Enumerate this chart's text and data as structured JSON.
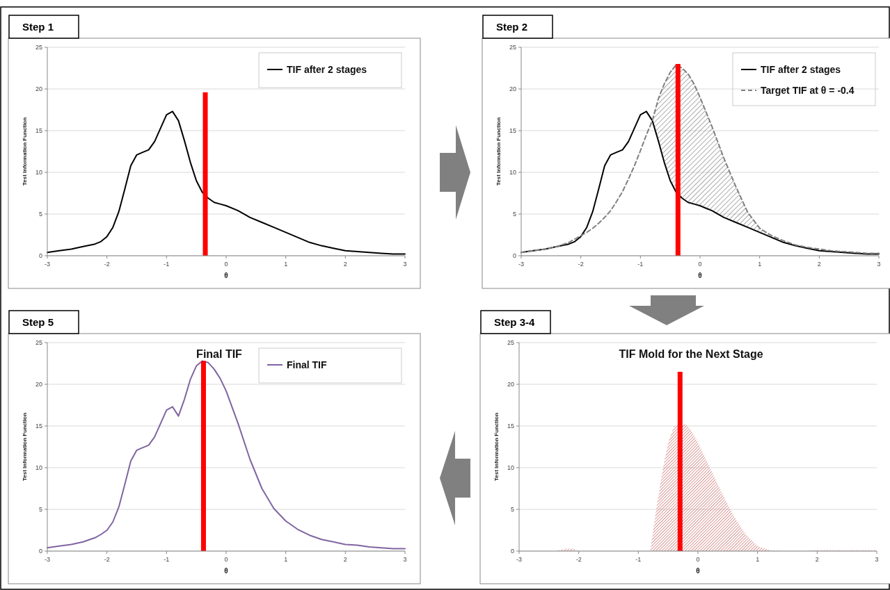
{
  "chart_data": [
    {
      "type": "line",
      "annotations": [
        "Step 1"
      ],
      "xlabel": "θ",
      "ylabel": "Test Information Function",
      "xlim": [
        -3,
        3
      ],
      "xticks": [
        -3,
        -2,
        -1,
        0,
        1,
        2,
        3
      ],
      "ylim": [
        0,
        25
      ],
      "yticks": [
        0,
        5,
        10,
        15,
        20,
        25
      ],
      "grid": "y",
      "legend": "top right",
      "x": [
        -3,
        -2.8,
        -2.6,
        -2.4,
        -2.2,
        -2.1,
        -2,
        -1.9,
        -1.8,
        -1.7,
        -1.6,
        -1.5,
        -1.4,
        -1.3,
        -1.2,
        -1.1,
        -1,
        -0.9,
        -0.8,
        -0.7,
        -0.6,
        -0.5,
        -0.4,
        -0.3,
        -0.2,
        -0.1,
        0,
        0.2,
        0.4,
        0.6,
        0.8,
        1,
        1.2,
        1.4,
        1.6,
        1.8,
        2,
        2.2,
        2.4,
        2.6,
        2.8,
        3
      ],
      "series": [
        {
          "name": "TIF after 2 stages",
          "color": "#000000",
          "values": [
            0.4,
            0.6,
            0.8,
            1.1,
            1.4,
            1.7,
            2.3,
            3.4,
            5.3,
            8.0,
            10.8,
            12.1,
            12.4,
            12.7,
            13.7,
            15.3,
            16.9,
            17.3,
            16.2,
            13.8,
            11.2,
            9.0,
            7.6,
            6.9,
            6.4,
            6.2,
            6.0,
            5.4,
            4.6,
            4.0,
            3.4,
            2.8,
            2.2,
            1.6,
            1.2,
            0.9,
            0.6,
            0.5,
            0.4,
            0.3,
            0.2,
            0.2
          ]
        },
        {
          "type": "bar",
          "color": "#ff0000",
          "x": [
            -0.35
          ],
          "values": [
            19.6
          ]
        }
      ]
    },
    {
      "type": "line",
      "annotations": [
        "Step 2"
      ],
      "xlabel": "θ",
      "ylabel": "Test Information Function",
      "xlim": [
        -3,
        3
      ],
      "xticks": [
        -3,
        -2,
        -1,
        0,
        1,
        2,
        3
      ],
      "ylim": [
        0,
        25
      ],
      "yticks": [
        0,
        5,
        10,
        15,
        20,
        25
      ],
      "grid": "y",
      "legend": "top right",
      "x": [
        -3,
        -2.8,
        -2.6,
        -2.4,
        -2.2,
        -2.1,
        -2,
        -1.9,
        -1.8,
        -1.7,
        -1.6,
        -1.5,
        -1.4,
        -1.3,
        -1.2,
        -1.1,
        -1,
        -0.9,
        -0.8,
        -0.7,
        -0.6,
        -0.5,
        -0.4,
        -0.3,
        -0.2,
        -0.1,
        0,
        0.2,
        0.4,
        0.6,
        0.8,
        1,
        1.2,
        1.4,
        1.6,
        1.8,
        2,
        2.2,
        2.4,
        2.6,
        2.8,
        3
      ],
      "series": [
        {
          "name": "TIF after 2 stages",
          "color": "#000000",
          "values": [
            0.4,
            0.6,
            0.8,
            1.1,
            1.4,
            1.7,
            2.3,
            3.4,
            5.3,
            8.0,
            10.8,
            12.1,
            12.4,
            12.7,
            13.7,
            15.3,
            16.9,
            17.3,
            16.2,
            13.8,
            11.2,
            9.0,
            7.6,
            6.9,
            6.4,
            6.2,
            6.0,
            5.4,
            4.6,
            4.0,
            3.4,
            2.8,
            2.2,
            1.6,
            1.2,
            0.9,
            0.6,
            0.5,
            0.4,
            0.3,
            0.2,
            0.2
          ]
        },
        {
          "name": "Target TIF at θ = -0.4",
          "color": "#808080",
          "line_style": "dashed",
          "values": [
            0.4,
            0.6,
            0.8,
            1.1,
            1.6,
            2.0,
            2.4,
            2.8,
            3.3,
            3.9,
            4.6,
            5.4,
            6.5,
            7.7,
            9.2,
            10.8,
            12.6,
            14.5,
            16.2,
            18.8,
            20.6,
            22.0,
            22.9,
            22.5,
            21.8,
            20.6,
            19.0,
            15.5,
            11.7,
            8.3,
            5.2,
            3.3,
            2.4,
            1.8,
            1.3,
            1.0,
            0.8,
            0.6,
            0.5,
            0.4,
            0.3,
            0.3
          ],
          "lower": [
            null,
            null,
            null,
            null,
            null,
            null,
            null,
            null,
            null,
            null,
            null,
            null,
            null,
            null,
            null,
            null,
            null,
            null,
            16.2,
            13.8,
            11.2,
            9.0,
            7.6,
            6.9,
            6.4,
            6.2,
            6.0,
            5.4,
            4.6,
            4.0,
            3.4,
            2.8,
            2.2,
            null,
            null,
            null,
            null,
            null,
            null,
            null,
            null,
            null
          ],
          "upper": [
            null,
            null,
            null,
            null,
            null,
            null,
            null,
            null,
            null,
            null,
            null,
            null,
            null,
            null,
            null,
            null,
            null,
            null,
            16.2,
            18.8,
            20.6,
            22.0,
            22.9,
            22.5,
            21.8,
            20.6,
            19.0,
            15.5,
            11.7,
            8.3,
            5.2,
            3.3,
            2.4,
            null,
            null,
            null,
            null,
            null,
            null,
            null,
            null,
            null
          ]
        },
        {
          "type": "bar",
          "color": "#ff0000",
          "x": [
            -0.37
          ],
          "values": [
            23
          ]
        }
      ]
    },
    {
      "type": "line",
      "annotations": [
        "Step 5"
      ],
      "title": "Final TIF",
      "xlabel": "θ",
      "ylabel": "Test Information Function",
      "xlim": [
        -3,
        3
      ],
      "xticks": [
        -3,
        -2,
        -1,
        0,
        1,
        2,
        3
      ],
      "ylim": [
        0,
        25
      ],
      "yticks": [
        0,
        5,
        10,
        15,
        20,
        25
      ],
      "grid": "y",
      "legend": "top right",
      "x": [
        -3,
        -2.8,
        -2.6,
        -2.4,
        -2.2,
        -2.1,
        -2,
        -1.9,
        -1.8,
        -1.7,
        -1.6,
        -1.5,
        -1.4,
        -1.3,
        -1.2,
        -1.1,
        -1,
        -0.9,
        -0.8,
        -0.7,
        -0.6,
        -0.5,
        -0.4,
        -0.3,
        -0.2,
        -0.1,
        0,
        0.2,
        0.4,
        0.6,
        0.8,
        1,
        1.2,
        1.4,
        1.6,
        1.8,
        2,
        2.2,
        2.4,
        2.6,
        2.8,
        3
      ],
      "series": [
        {
          "name": "Final TIF",
          "color": "#8064a2",
          "values": [
            0.4,
            0.6,
            0.8,
            1.1,
            1.6,
            2.0,
            2.5,
            3.5,
            5.3,
            8.0,
            10.8,
            12.1,
            12.4,
            12.7,
            13.7,
            15.3,
            16.9,
            17.3,
            16.2,
            18.2,
            20.6,
            22.2,
            22.8,
            22.6,
            21.8,
            20.7,
            19.2,
            15.3,
            11.0,
            7.5,
            5.1,
            3.6,
            2.6,
            1.9,
            1.4,
            1.1,
            0.8,
            0.7,
            0.5,
            0.4,
            0.3,
            0.3
          ]
        },
        {
          "type": "bar",
          "color": "#ff0000",
          "x": [
            -0.38
          ],
          "values": [
            22.8
          ]
        }
      ]
    },
    {
      "type": "area",
      "annotations": [
        "Step 3-4"
      ],
      "title": "TIF Mold  for the Next Stage",
      "xlabel": "θ",
      "ylabel": "Test Information Function",
      "xlim": [
        -3,
        3
      ],
      "xticks": [
        -3,
        -2,
        -1,
        0,
        1,
        2,
        3
      ],
      "ylim": [
        0,
        25
      ],
      "yticks": [
        0,
        5,
        10,
        15,
        20,
        25
      ],
      "grid": "y",
      "series": [
        {
          "color": "#c0504d",
          "x": [
            -3,
            -2.8,
            -2.6,
            -2.4,
            -2.2,
            -2.1,
            -2,
            -1.9,
            -1.8,
            -1.7,
            -1.6,
            -1.5,
            -1.4,
            -1.3,
            -1.2,
            -1.1,
            -1,
            -0.9,
            -0.8,
            -0.7,
            -0.6,
            -0.5,
            -0.4,
            -0.2,
            -0.1,
            0,
            0.2,
            0.4,
            0.6,
            0.8,
            1,
            1.2,
            1.4,
            1.6,
            1.8,
            2,
            2.2,
            2.4,
            2.6,
            2.8,
            3
          ],
          "values": [
            0,
            0,
            0,
            0,
            0.3,
            0.3,
            0,
            0,
            0,
            0,
            0,
            0,
            0,
            0,
            0,
            0,
            0,
            0,
            0,
            5.0,
            9.4,
            13.0,
            15.0,
            15.2,
            14.3,
            13.0,
            10.0,
            7.0,
            4.2,
            2.0,
            0.6,
            0.1,
            0,
            0,
            0,
            0.1,
            0.1,
            0.1,
            0.1,
            0.1,
            0.1
          ]
        },
        {
          "type": "bar",
          "color": "#ff0000",
          "x": [
            -0.3
          ],
          "values": [
            21.5
          ]
        }
      ]
    }
  ]
}
